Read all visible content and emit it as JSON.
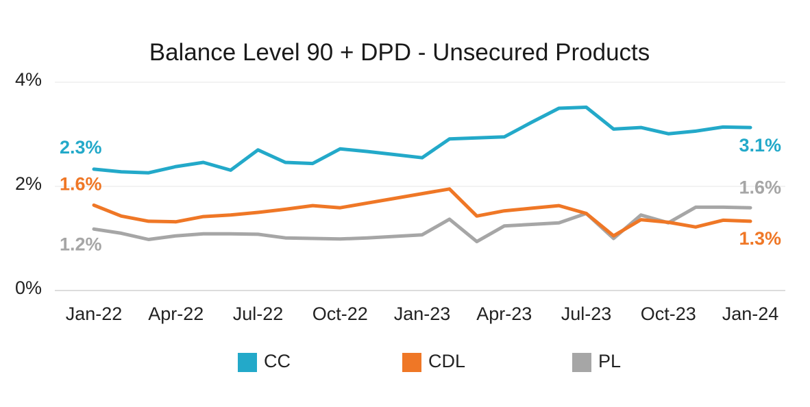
{
  "chart_data": {
    "type": "line",
    "title": "Balance Level 90 + DPD - Unsecured Products",
    "xlabel": "",
    "ylabel": "",
    "ylim": [
      0,
      4
    ],
    "y_ticks": [
      "0%",
      "2%",
      "4%"
    ],
    "x_tick_labels": [
      "Jan-22",
      "Apr-22",
      "Jul-22",
      "Oct-22",
      "Jan-23",
      "Apr-23",
      "Jul-23",
      "Oct-23",
      "Jan-24"
    ],
    "x": [
      "Jan-22",
      "Feb-22",
      "Mar-22",
      "Apr-22",
      "May-22",
      "Jun-22",
      "Jul-22",
      "Aug-22",
      "Sep-22",
      "Oct-22",
      "Nov-22",
      "Dec-22",
      "Jan-23",
      "Feb-23",
      "Mar-23",
      "Apr-23",
      "May-23",
      "Jun-23",
      "Jul-23",
      "Aug-23",
      "Sep-23",
      "Oct-23",
      "Nov-23",
      "Dec-23",
      "Jan-24"
    ],
    "grid": true,
    "legend_position": "bottom",
    "series": [
      {
        "name": "CC",
        "color": "#23a9c9",
        "start_label": "2.3%",
        "end_label": "3.1%",
        "values": [
          2.33,
          2.28,
          2.26,
          2.38,
          2.46,
          2.31,
          2.7,
          2.46,
          2.44,
          2.72,
          2.67,
          2.61,
          2.55,
          2.91,
          2.93,
          2.95,
          3.23,
          3.5,
          3.52,
          3.1,
          3.13,
          3.01,
          3.06,
          3.14,
          3.13
        ]
      },
      {
        "name": "CDL",
        "color": "#ef7726",
        "start_label": "1.6%",
        "end_label": "1.3%",
        "values": [
          1.64,
          1.43,
          1.33,
          1.32,
          1.42,
          1.45,
          1.5,
          1.56,
          1.63,
          1.59,
          1.68,
          1.77,
          1.86,
          1.95,
          1.43,
          1.53,
          1.58,
          1.63,
          1.48,
          1.05,
          1.36,
          1.31,
          1.22,
          1.35,
          1.33
        ]
      },
      {
        "name": "PL",
        "color": "#a6a6a6",
        "start_label": "1.2%",
        "end_label": "1.6%",
        "values": [
          1.18,
          1.1,
          0.98,
          1.05,
          1.09,
          1.09,
          1.08,
          1.01,
          1.0,
          0.99,
          1.01,
          1.04,
          1.07,
          1.37,
          0.94,
          1.24,
          1.27,
          1.3,
          1.48,
          1.0,
          1.45,
          1.3,
          1.6,
          1.6,
          1.59
        ]
      }
    ]
  }
}
